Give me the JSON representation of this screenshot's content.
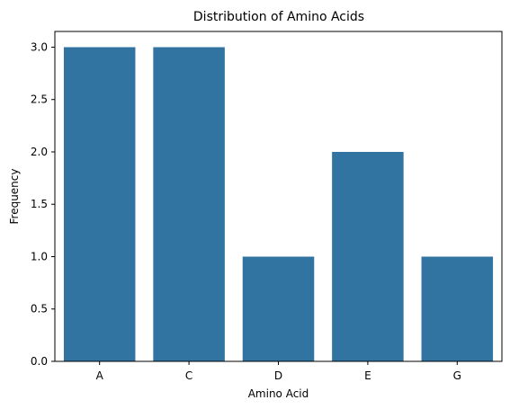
{
  "chart_data": {
    "type": "bar",
    "title": "Distribution of Amino Acids",
    "xlabel": "Amino Acid",
    "ylabel": "Frequency",
    "categories": [
      "A",
      "C",
      "D",
      "E",
      "G"
    ],
    "values": [
      3,
      3,
      1,
      2,
      1
    ],
    "ylim": [
      0,
      3.15
    ],
    "yticks": [
      "0.0",
      "0.5",
      "1.0",
      "1.5",
      "2.0",
      "2.5",
      "3.0"
    ],
    "grid": false,
    "bar_color": "#3274a1"
  }
}
